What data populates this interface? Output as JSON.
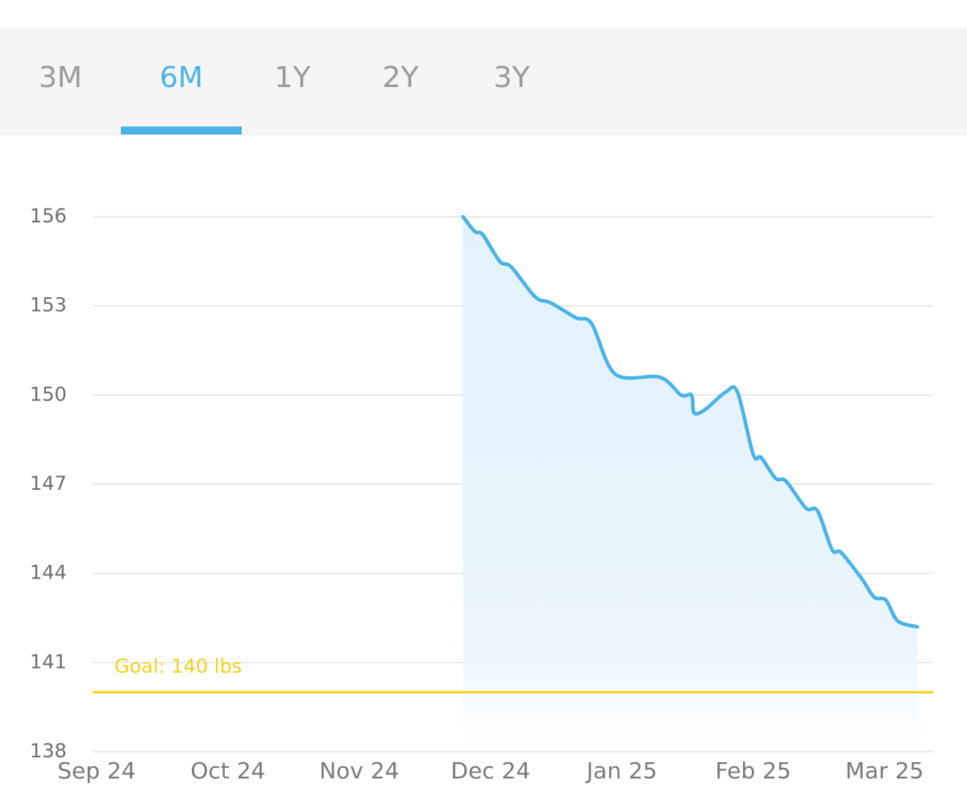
{
  "tabs": {
    "items": [
      "3M",
      "6M",
      "1Y",
      "2Y",
      "3Y"
    ],
    "active": 1,
    "active_color": "#4ab3e6",
    "color": "#9a9a9a"
  },
  "chart_data": {
    "type": "line",
    "series": [
      {
        "color": "#4ab3e6",
        "x": [
          2.79,
          2.88,
          2.94,
          3.07,
          3.16,
          3.34,
          3.46,
          3.65,
          3.77,
          3.95,
          4.29,
          4.45,
          4.53,
          4.55,
          4.63,
          4.79,
          4.88,
          5.0,
          5.06,
          5.17,
          5.25,
          5.4,
          5.49,
          5.6,
          5.67,
          5.83,
          5.92,
          6.01,
          6.1,
          6.25
        ],
        "values": [
          156.0,
          155.5,
          155.4,
          154.5,
          154.3,
          153.3,
          153.1,
          152.6,
          152.4,
          150.7,
          150.6,
          150.0,
          150.0,
          149.4,
          149.5,
          150.1,
          150.1,
          148.0,
          147.9,
          147.2,
          147.1,
          146.2,
          146.1,
          144.8,
          144.7,
          143.8,
          143.2,
          143.1,
          142.4,
          142.2
        ]
      }
    ],
    "xlim": [
      -0.03,
      6.37
    ],
    "xticks": [
      {
        "value": 0,
        "label": "Sep 24"
      },
      {
        "value": 1,
        "label": "Oct 24"
      },
      {
        "value": 2,
        "label": "Nov 24"
      },
      {
        "value": 3,
        "label": "Dec 24"
      },
      {
        "value": 4,
        "label": "Jan 25"
      },
      {
        "value": 5,
        "label": "Feb 25"
      },
      {
        "value": 6,
        "label": "Mar 25"
      }
    ],
    "ylim": [
      138,
      156
    ],
    "yticks": [
      138,
      141,
      144,
      147,
      150,
      153,
      156
    ],
    "grid": true,
    "goal": {
      "value": 140,
      "label": "Goal: 140 lbs",
      "color": "#f2d21b"
    }
  }
}
